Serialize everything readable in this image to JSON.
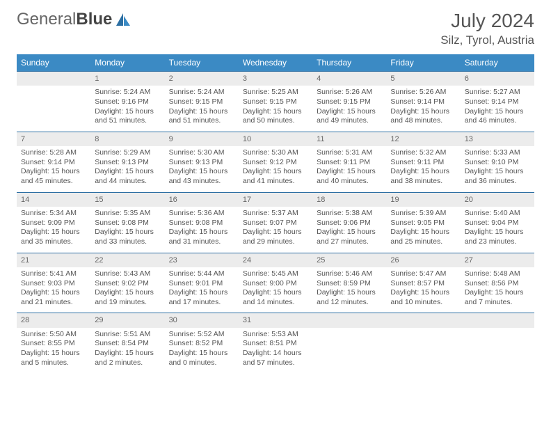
{
  "logo": {
    "part1": "General",
    "part2": "Blue"
  },
  "title": "July 2024",
  "location": "Silz, Tyrol, Austria",
  "colors": {
    "header_bg": "#3b8ac4",
    "header_text": "#ffffff",
    "daynum_bg": "#ececec",
    "border": "#2c6fa3",
    "text": "#555555"
  },
  "days_of_week": [
    "Sunday",
    "Monday",
    "Tuesday",
    "Wednesday",
    "Thursday",
    "Friday",
    "Saturday"
  ],
  "weeks": [
    [
      {
        "n": "",
        "sr": "",
        "ss": "",
        "dl": ""
      },
      {
        "n": "1",
        "sr": "Sunrise: 5:24 AM",
        "ss": "Sunset: 9:16 PM",
        "dl": "Daylight: 15 hours and 51 minutes."
      },
      {
        "n": "2",
        "sr": "Sunrise: 5:24 AM",
        "ss": "Sunset: 9:15 PM",
        "dl": "Daylight: 15 hours and 51 minutes."
      },
      {
        "n": "3",
        "sr": "Sunrise: 5:25 AM",
        "ss": "Sunset: 9:15 PM",
        "dl": "Daylight: 15 hours and 50 minutes."
      },
      {
        "n": "4",
        "sr": "Sunrise: 5:26 AM",
        "ss": "Sunset: 9:15 PM",
        "dl": "Daylight: 15 hours and 49 minutes."
      },
      {
        "n": "5",
        "sr": "Sunrise: 5:26 AM",
        "ss": "Sunset: 9:14 PM",
        "dl": "Daylight: 15 hours and 48 minutes."
      },
      {
        "n": "6",
        "sr": "Sunrise: 5:27 AM",
        "ss": "Sunset: 9:14 PM",
        "dl": "Daylight: 15 hours and 46 minutes."
      }
    ],
    [
      {
        "n": "7",
        "sr": "Sunrise: 5:28 AM",
        "ss": "Sunset: 9:14 PM",
        "dl": "Daylight: 15 hours and 45 minutes."
      },
      {
        "n": "8",
        "sr": "Sunrise: 5:29 AM",
        "ss": "Sunset: 9:13 PM",
        "dl": "Daylight: 15 hours and 44 minutes."
      },
      {
        "n": "9",
        "sr": "Sunrise: 5:30 AM",
        "ss": "Sunset: 9:13 PM",
        "dl": "Daylight: 15 hours and 43 minutes."
      },
      {
        "n": "10",
        "sr": "Sunrise: 5:30 AM",
        "ss": "Sunset: 9:12 PM",
        "dl": "Daylight: 15 hours and 41 minutes."
      },
      {
        "n": "11",
        "sr": "Sunrise: 5:31 AM",
        "ss": "Sunset: 9:11 PM",
        "dl": "Daylight: 15 hours and 40 minutes."
      },
      {
        "n": "12",
        "sr": "Sunrise: 5:32 AM",
        "ss": "Sunset: 9:11 PM",
        "dl": "Daylight: 15 hours and 38 minutes."
      },
      {
        "n": "13",
        "sr": "Sunrise: 5:33 AM",
        "ss": "Sunset: 9:10 PM",
        "dl": "Daylight: 15 hours and 36 minutes."
      }
    ],
    [
      {
        "n": "14",
        "sr": "Sunrise: 5:34 AM",
        "ss": "Sunset: 9:09 PM",
        "dl": "Daylight: 15 hours and 35 minutes."
      },
      {
        "n": "15",
        "sr": "Sunrise: 5:35 AM",
        "ss": "Sunset: 9:08 PM",
        "dl": "Daylight: 15 hours and 33 minutes."
      },
      {
        "n": "16",
        "sr": "Sunrise: 5:36 AM",
        "ss": "Sunset: 9:08 PM",
        "dl": "Daylight: 15 hours and 31 minutes."
      },
      {
        "n": "17",
        "sr": "Sunrise: 5:37 AM",
        "ss": "Sunset: 9:07 PM",
        "dl": "Daylight: 15 hours and 29 minutes."
      },
      {
        "n": "18",
        "sr": "Sunrise: 5:38 AM",
        "ss": "Sunset: 9:06 PM",
        "dl": "Daylight: 15 hours and 27 minutes."
      },
      {
        "n": "19",
        "sr": "Sunrise: 5:39 AM",
        "ss": "Sunset: 9:05 PM",
        "dl": "Daylight: 15 hours and 25 minutes."
      },
      {
        "n": "20",
        "sr": "Sunrise: 5:40 AM",
        "ss": "Sunset: 9:04 PM",
        "dl": "Daylight: 15 hours and 23 minutes."
      }
    ],
    [
      {
        "n": "21",
        "sr": "Sunrise: 5:41 AM",
        "ss": "Sunset: 9:03 PM",
        "dl": "Daylight: 15 hours and 21 minutes."
      },
      {
        "n": "22",
        "sr": "Sunrise: 5:43 AM",
        "ss": "Sunset: 9:02 PM",
        "dl": "Daylight: 15 hours and 19 minutes."
      },
      {
        "n": "23",
        "sr": "Sunrise: 5:44 AM",
        "ss": "Sunset: 9:01 PM",
        "dl": "Daylight: 15 hours and 17 minutes."
      },
      {
        "n": "24",
        "sr": "Sunrise: 5:45 AM",
        "ss": "Sunset: 9:00 PM",
        "dl": "Daylight: 15 hours and 14 minutes."
      },
      {
        "n": "25",
        "sr": "Sunrise: 5:46 AM",
        "ss": "Sunset: 8:59 PM",
        "dl": "Daylight: 15 hours and 12 minutes."
      },
      {
        "n": "26",
        "sr": "Sunrise: 5:47 AM",
        "ss": "Sunset: 8:57 PM",
        "dl": "Daylight: 15 hours and 10 minutes."
      },
      {
        "n": "27",
        "sr": "Sunrise: 5:48 AM",
        "ss": "Sunset: 8:56 PM",
        "dl": "Daylight: 15 hours and 7 minutes."
      }
    ],
    [
      {
        "n": "28",
        "sr": "Sunrise: 5:50 AM",
        "ss": "Sunset: 8:55 PM",
        "dl": "Daylight: 15 hours and 5 minutes."
      },
      {
        "n": "29",
        "sr": "Sunrise: 5:51 AM",
        "ss": "Sunset: 8:54 PM",
        "dl": "Daylight: 15 hours and 2 minutes."
      },
      {
        "n": "30",
        "sr": "Sunrise: 5:52 AM",
        "ss": "Sunset: 8:52 PM",
        "dl": "Daylight: 15 hours and 0 minutes."
      },
      {
        "n": "31",
        "sr": "Sunrise: 5:53 AM",
        "ss": "Sunset: 8:51 PM",
        "dl": "Daylight: 14 hours and 57 minutes."
      },
      {
        "n": "",
        "sr": "",
        "ss": "",
        "dl": ""
      },
      {
        "n": "",
        "sr": "",
        "ss": "",
        "dl": ""
      },
      {
        "n": "",
        "sr": "",
        "ss": "",
        "dl": ""
      }
    ]
  ]
}
